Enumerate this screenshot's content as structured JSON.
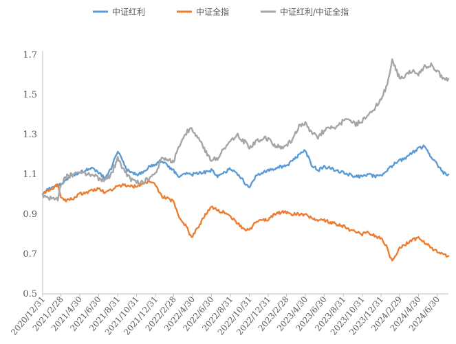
{
  "chart_data": {
    "type": "line",
    "title": "",
    "xlabel": "",
    "ylabel": "",
    "ylim": [
      0.5,
      1.7
    ],
    "yticks": [
      "0.5",
      "0.7",
      "0.9",
      "1.1",
      "1.3",
      "1.5",
      "1.7"
    ],
    "xticks": [
      "2020/12/31",
      "2021/2/28",
      "2021/4/30",
      "2021/6/30",
      "2021/8/31",
      "2021/10/31",
      "2021/12/31",
      "2022/2/28",
      "2022/4/30",
      "2022/6/30",
      "2022/8/31",
      "2022/10/31",
      "2022/12/31",
      "2023/2/28",
      "2023/4/30",
      "2023/6/30",
      "2023/8/31",
      "2023/10/31",
      "2023/12/31",
      "2024/2/29",
      "2024/4/30",
      "2024/6/30"
    ],
    "grid": false,
    "legend_position": "top",
    "series": [
      {
        "name": "中证红利",
        "color": "#5B9BD5",
        "points": [
          [
            "2020/12/31",
            1.0
          ],
          [
            "2021/1/15",
            1.02
          ],
          [
            "2021/2/1",
            1.04
          ],
          [
            "2021/2/28",
            1.05
          ],
          [
            "2021/3/15",
            1.07
          ],
          [
            "2021/4/1",
            1.09
          ],
          [
            "2021/4/30",
            1.11
          ],
          [
            "2021/5/20",
            1.12
          ],
          [
            "2021/6/10",
            1.13
          ],
          [
            "2021/6/30",
            1.11
          ],
          [
            "2021/7/20",
            1.08
          ],
          [
            "2021/8/10",
            1.13
          ],
          [
            "2021/8/31",
            1.22
          ],
          [
            "2021/9/15",
            1.17
          ],
          [
            "2021/10/1",
            1.12
          ],
          [
            "2021/10/31",
            1.1
          ],
          [
            "2021/11/20",
            1.11
          ],
          [
            "2021/12/10",
            1.14
          ],
          [
            "2021/12/31",
            1.15
          ],
          [
            "2022/1/20",
            1.17
          ],
          [
            "2022/2/10",
            1.14
          ],
          [
            "2022/2/28",
            1.12
          ],
          [
            "2022/3/15",
            1.09
          ],
          [
            "2022/4/1",
            1.11
          ],
          [
            "2022/4/30",
            1.1
          ],
          [
            "2022/5/20",
            1.11
          ],
          [
            "2022/6/10",
            1.11
          ],
          [
            "2022/6/30",
            1.12
          ],
          [
            "2022/7/20",
            1.09
          ],
          [
            "2022/8/10",
            1.11
          ],
          [
            "2022/8/31",
            1.13
          ],
          [
            "2022/9/20",
            1.1
          ],
          [
            "2022/10/10",
            1.07
          ],
          [
            "2022/10/31",
            1.03
          ],
          [
            "2022/11/20",
            1.09
          ],
          [
            "2022/12/10",
            1.11
          ],
          [
            "2022/12/31",
            1.12
          ],
          [
            "2023/1/20",
            1.13
          ],
          [
            "2023/2/10",
            1.14
          ],
          [
            "2023/2/28",
            1.14
          ],
          [
            "2023/3/20",
            1.17
          ],
          [
            "2023/4/10",
            1.2
          ],
          [
            "2023/4/30",
            1.22
          ],
          [
            "2023/5/20",
            1.15
          ],
          [
            "2023/6/10",
            1.12
          ],
          [
            "2023/6/30",
            1.14
          ],
          [
            "2023/7/20",
            1.13
          ],
          [
            "2023/8/10",
            1.12
          ],
          [
            "2023/8/31",
            1.11
          ],
          [
            "2023/9/20",
            1.1
          ],
          [
            "2023/10/10",
            1.09
          ],
          [
            "2023/10/31",
            1.09
          ],
          [
            "2023/11/20",
            1.1
          ],
          [
            "2023/12/10",
            1.09
          ],
          [
            "2023/12/31",
            1.09
          ],
          [
            "2024/1/20",
            1.12
          ],
          [
            "2024/2/10",
            1.15
          ],
          [
            "2024/2/29",
            1.17
          ],
          [
            "2024/3/20",
            1.18
          ],
          [
            "2024/4/10",
            1.21
          ],
          [
            "2024/4/30",
            1.23
          ],
          [
            "2024/5/20",
            1.24
          ],
          [
            "2024/6/10",
            1.19
          ],
          [
            "2024/6/30",
            1.15
          ],
          [
            "2024/7/20",
            1.11
          ],
          [
            "2024/8/5",
            1.1
          ]
        ]
      },
      {
        "name": "中证全指",
        "color": "#ED7D31",
        "points": [
          [
            "2020/12/31",
            1.0
          ],
          [
            "2021/1/15",
            1.02
          ],
          [
            "2021/2/1",
            1.03
          ],
          [
            "2021/2/18",
            1.05
          ],
          [
            "2021/2/28",
            0.98
          ],
          [
            "2021/3/20",
            0.97
          ],
          [
            "2021/4/10",
            0.98
          ],
          [
            "2021/4/30",
            1.0
          ],
          [
            "2021/5/20",
            1.01
          ],
          [
            "2021/6/10",
            1.02
          ],
          [
            "2021/6/30",
            1.03
          ],
          [
            "2021/7/20",
            1.01
          ],
          [
            "2021/8/10",
            1.02
          ],
          [
            "2021/8/31",
            1.04
          ],
          [
            "2021/9/20",
            1.05
          ],
          [
            "2021/10/10",
            1.04
          ],
          [
            "2021/10/31",
            1.04
          ],
          [
            "2021/11/20",
            1.05
          ],
          [
            "2021/12/10",
            1.06
          ],
          [
            "2021/12/31",
            1.05
          ],
          [
            "2022/1/20",
            0.99
          ],
          [
            "2022/2/10",
            0.98
          ],
          [
            "2022/2/28",
            0.96
          ],
          [
            "2022/3/15",
            0.89
          ],
          [
            "2022/4/10",
            0.84
          ],
          [
            "2022/4/27",
            0.78
          ],
          [
            "2022/5/20",
            0.84
          ],
          [
            "2022/6/10",
            0.9
          ],
          [
            "2022/6/30",
            0.94
          ],
          [
            "2022/7/20",
            0.92
          ],
          [
            "2022/8/10",
            0.91
          ],
          [
            "2022/8/31",
            0.89
          ],
          [
            "2022/9/20",
            0.86
          ],
          [
            "2022/10/10",
            0.83
          ],
          [
            "2022/10/31",
            0.82
          ],
          [
            "2022/11/20",
            0.86
          ],
          [
            "2022/12/10",
            0.87
          ],
          [
            "2022/12/31",
            0.87
          ],
          [
            "2023/1/20",
            0.9
          ],
          [
            "2023/2/10",
            0.91
          ],
          [
            "2023/2/28",
            0.91
          ],
          [
            "2023/3/20",
            0.9
          ],
          [
            "2023/4/10",
            0.9
          ],
          [
            "2023/4/30",
            0.9
          ],
          [
            "2023/5/20",
            0.88
          ],
          [
            "2023/6/10",
            0.87
          ],
          [
            "2023/6/30",
            0.87
          ],
          [
            "2023/7/20",
            0.86
          ],
          [
            "2023/8/10",
            0.85
          ],
          [
            "2023/8/31",
            0.84
          ],
          [
            "2023/9/20",
            0.82
          ],
          [
            "2023/10/10",
            0.81
          ],
          [
            "2023/10/31",
            0.8
          ],
          [
            "2023/11/20",
            0.81
          ],
          [
            "2023/12/10",
            0.79
          ],
          [
            "2023/12/31",
            0.78
          ],
          [
            "2024/1/20",
            0.73
          ],
          [
            "2024/2/5",
            0.66
          ],
          [
            "2024/2/29",
            0.73
          ],
          [
            "2024/3/20",
            0.75
          ],
          [
            "2024/4/10",
            0.77
          ],
          [
            "2024/4/30",
            0.78
          ],
          [
            "2024/5/20",
            0.76
          ],
          [
            "2024/6/10",
            0.73
          ],
          [
            "2024/6/30",
            0.71
          ],
          [
            "2024/7/20",
            0.7
          ],
          [
            "2024/8/5",
            0.69
          ]
        ]
      },
      {
        "name": "中证红利/中证全指",
        "color": "#A5A5A5",
        "points": [
          [
            "2020/12/31",
            1.0
          ],
          [
            "2021/1/15",
            0.98
          ],
          [
            "2021/2/1",
            0.98
          ],
          [
            "2021/2/18",
            0.97
          ],
          [
            "2021/2/28",
            1.05
          ],
          [
            "2021/3/20",
            1.09
          ],
          [
            "2021/4/10",
            1.1
          ],
          [
            "2021/4/30",
            1.11
          ],
          [
            "2021/5/20",
            1.1
          ],
          [
            "2021/6/10",
            1.1
          ],
          [
            "2021/6/30",
            1.08
          ],
          [
            "2021/7/20",
            1.07
          ],
          [
            "2021/8/10",
            1.1
          ],
          [
            "2021/8/31",
            1.18
          ],
          [
            "2021/9/20",
            1.12
          ],
          [
            "2021/10/10",
            1.08
          ],
          [
            "2021/10/31",
            1.06
          ],
          [
            "2021/11/20",
            1.06
          ],
          [
            "2021/12/10",
            1.08
          ],
          [
            "2021/12/31",
            1.1
          ],
          [
            "2022/1/20",
            1.18
          ],
          [
            "2022/2/10",
            1.17
          ],
          [
            "2022/2/28",
            1.17
          ],
          [
            "2022/3/15",
            1.23
          ],
          [
            "2022/4/10",
            1.31
          ],
          [
            "2022/4/27",
            1.33
          ],
          [
            "2022/5/20",
            1.28
          ],
          [
            "2022/6/10",
            1.22
          ],
          [
            "2022/6/30",
            1.17
          ],
          [
            "2022/7/20",
            1.18
          ],
          [
            "2022/8/10",
            1.23
          ],
          [
            "2022/8/31",
            1.27
          ],
          [
            "2022/9/20",
            1.3
          ],
          [
            "2022/10/10",
            1.27
          ],
          [
            "2022/10/31",
            1.24
          ],
          [
            "2022/11/20",
            1.26
          ],
          [
            "2022/12/10",
            1.28
          ],
          [
            "2022/12/31",
            1.28
          ],
          [
            "2023/1/20",
            1.25
          ],
          [
            "2023/2/10",
            1.23
          ],
          [
            "2023/2/28",
            1.24
          ],
          [
            "2023/3/20",
            1.28
          ],
          [
            "2023/4/10",
            1.34
          ],
          [
            "2023/4/30",
            1.36
          ],
          [
            "2023/5/20",
            1.31
          ],
          [
            "2023/6/10",
            1.29
          ],
          [
            "2023/6/30",
            1.32
          ],
          [
            "2023/7/20",
            1.33
          ],
          [
            "2023/8/10",
            1.34
          ],
          [
            "2023/8/31",
            1.37
          ],
          [
            "2023/9/20",
            1.38
          ],
          [
            "2023/10/10",
            1.35
          ],
          [
            "2023/10/31",
            1.37
          ],
          [
            "2023/11/20",
            1.4
          ],
          [
            "2023/12/10",
            1.43
          ],
          [
            "2023/12/31",
            1.48
          ],
          [
            "2024/1/20",
            1.55
          ],
          [
            "2024/2/5",
            1.68
          ],
          [
            "2024/2/29",
            1.58
          ],
          [
            "2024/3/20",
            1.6
          ],
          [
            "2024/4/10",
            1.62
          ],
          [
            "2024/4/30",
            1.6
          ],
          [
            "2024/5/20",
            1.64
          ],
          [
            "2024/6/10",
            1.65
          ],
          [
            "2024/6/30",
            1.62
          ],
          [
            "2024/7/20",
            1.58
          ],
          [
            "2024/8/5",
            1.58
          ]
        ]
      }
    ]
  }
}
